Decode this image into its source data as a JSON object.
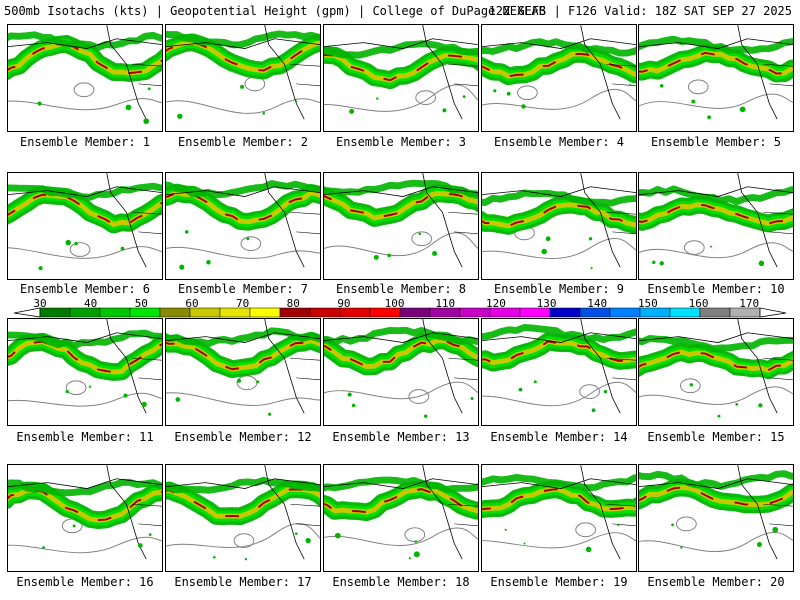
{
  "header": {
    "title_left": "500mb Isotachs (kts) | Geopotential Height (gpm) | College of DuPage NEXLAB",
    "title_right": "12Z GEFS | F126 Valid: 18Z SAT SEP 27 2025"
  },
  "panels": [
    {
      "label": "Ensemble Member: 1"
    },
    {
      "label": "Ensemble Member: 2"
    },
    {
      "label": "Ensemble Member: 3"
    },
    {
      "label": "Ensemble Member: 4"
    },
    {
      "label": "Ensemble Member: 5"
    },
    {
      "label": "Ensemble Member: 6"
    },
    {
      "label": "Ensemble Member: 7"
    },
    {
      "label": "Ensemble Member: 8"
    },
    {
      "label": "Ensemble Member: 9"
    },
    {
      "label": "Ensemble Member: 10"
    },
    {
      "label": "Ensemble Member: 11"
    },
    {
      "label": "Ensemble Member: 12"
    },
    {
      "label": "Ensemble Member: 13"
    },
    {
      "label": "Ensemble Member: 14"
    },
    {
      "label": "Ensemble Member: 15"
    },
    {
      "label": "Ensemble Member: 16"
    },
    {
      "label": "Ensemble Member: 17"
    },
    {
      "label": "Ensemble Member: 18"
    },
    {
      "label": "Ensemble Member: 19"
    },
    {
      "label": "Ensemble Member: 20"
    }
  ],
  "colorbar": {
    "labels": [
      "30",
      "40",
      "50",
      "60",
      "70",
      "80",
      "90",
      "100",
      "110",
      "120",
      "130",
      "140",
      "150",
      "160",
      "170"
    ],
    "colors": [
      "#007a00",
      "#00a000",
      "#00c800",
      "#00e600",
      "#8a8a00",
      "#c8c800",
      "#e6e600",
      "#ffff00",
      "#a00000",
      "#c80000",
      "#e00000",
      "#ff0000",
      "#7a007a",
      "#a000a0",
      "#c800c8",
      "#e600e6",
      "#ff00ff",
      "#0000c8",
      "#0050e6",
      "#0080ff",
      "#00b0ff",
      "#00e0ff",
      "#808080",
      "#b0b0b0"
    ]
  }
}
